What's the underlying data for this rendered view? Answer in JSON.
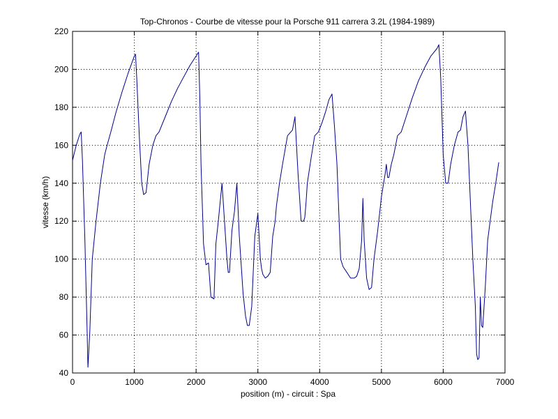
{
  "chart_data": {
    "type": "line",
    "title": "Top-Chronos - Courbe de vitesse pour la Porsche 911 carrera 3.2L (1984-1989)",
    "xlabel": "position (m) - circuit : Spa",
    "ylabel": "vitesse (km/h)",
    "xlim": [
      0,
      7000
    ],
    "ylim": [
      40,
      220
    ],
    "xticks": [
      0,
      1000,
      2000,
      3000,
      4000,
      5000,
      6000,
      7000
    ],
    "yticks": [
      40,
      60,
      80,
      100,
      120,
      140,
      160,
      180,
      200,
      220
    ],
    "grid": true,
    "line_color": "#00008B",
    "series": [
      {
        "x": [
          0,
          60,
          120,
          140,
          160,
          200,
          230,
          250,
          280,
          320,
          380,
          450,
          520,
          560,
          620,
          700,
          800,
          900,
          1000,
          1020,
          1040,
          1080,
          1120,
          1150,
          1190,
          1240,
          1300,
          1350,
          1400,
          1500,
          1600,
          1700,
          1800,
          1900,
          2000,
          2040,
          2060,
          2080,
          2120,
          2160,
          2200,
          2240,
          2290,
          2320,
          2360,
          2420,
          2500,
          2520,
          2540,
          2580,
          2620,
          2660,
          2700,
          2760,
          2800,
          2830,
          2860,
          2900,
          2950,
          3000,
          3040,
          3060,
          3080,
          3120,
          3160,
          3200,
          3240,
          3280,
          3300,
          3350,
          3400,
          3480,
          3560,
          3600,
          3650,
          3700,
          3740,
          3760,
          3780,
          3800,
          3860,
          3920,
          3980,
          4040,
          4100,
          4150,
          4200,
          4240,
          4260,
          4280,
          4310,
          4340,
          4380,
          4440,
          4500,
          4560,
          4600,
          4640,
          4680,
          4700,
          4720,
          4760,
          4800,
          4840,
          4880,
          4940,
          5000,
          5060,
          5080,
          5100,
          5120,
          5160,
          5200,
          5260,
          5320,
          5400,
          5500,
          5600,
          5700,
          5800,
          5900,
          5930,
          5960,
          6000,
          6040,
          6060,
          6080,
          6120,
          6180,
          6240,
          6280,
          6320,
          6360,
          6400,
          6440,
          6480,
          6520,
          6540,
          6560,
          6580,
          6600,
          6620,
          6640,
          6680,
          6720,
          6760,
          6800,
          6850,
          6900
        ],
        "y": [
          152,
          160,
          166,
          167,
          152,
          110,
          70,
          43,
          62,
          100,
          120,
          140,
          155,
          160,
          167,
          177,
          188,
          198,
          207,
          208,
          195,
          165,
          140,
          134,
          135,
          150,
          160,
          165,
          167,
          175,
          183,
          190,
          196,
          202,
          207,
          209,
          185,
          150,
          108,
          97,
          98,
          80,
          79,
          108,
          120,
          140,
          100,
          93,
          93,
          115,
          125,
          140,
          112,
          82,
          70,
          65,
          65,
          75,
          112,
          124,
          100,
          95,
          92,
          90,
          91,
          93,
          112,
          120,
          128,
          140,
          150,
          165,
          168,
          175,
          145,
          120,
          120,
          122,
          130,
          140,
          153,
          165,
          167,
          172,
          178,
          184,
          187,
          170,
          160,
          150,
          125,
          100,
          96,
          93,
          90,
          90,
          91,
          95,
          110,
          132,
          110,
          90,
          84,
          85,
          100,
          115,
          133,
          145,
          150,
          143,
          143,
          150,
          155,
          165,
          167,
          175,
          185,
          194,
          201,
          207,
          211,
          213,
          195,
          155,
          140,
          140,
          140,
          150,
          160,
          167,
          168,
          175,
          178,
          160,
          130,
          100,
          75,
          50,
          47,
          48,
          80,
          65,
          64,
          85,
          110,
          120,
          130,
          140,
          151
        ]
      }
    ]
  }
}
